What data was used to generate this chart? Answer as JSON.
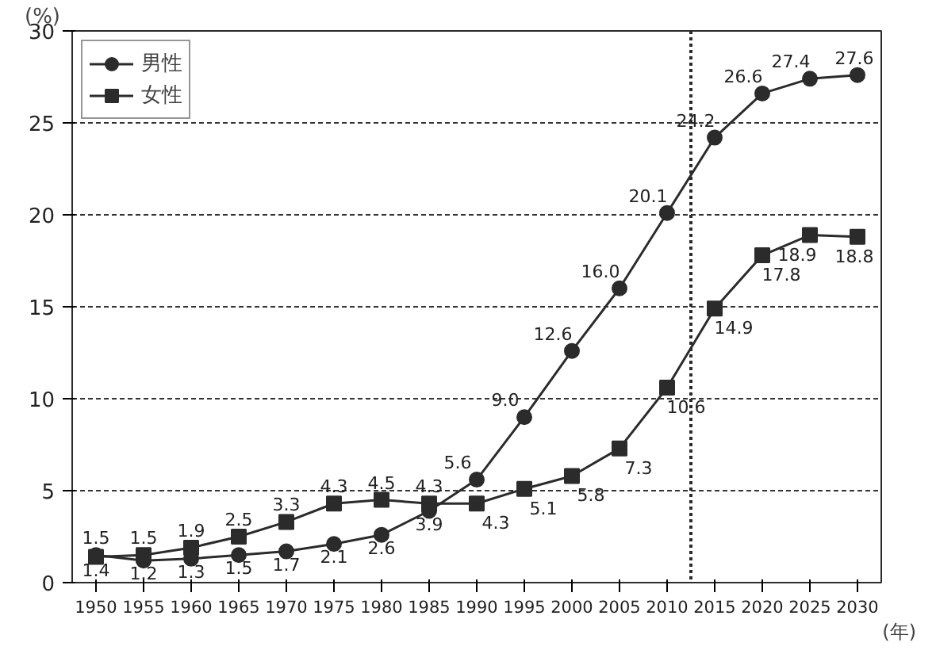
{
  "chart_data": {
    "type": "line",
    "ylabel": "(%)",
    "xlabel": "(年)",
    "x": [
      1950,
      1955,
      1960,
      1965,
      1970,
      1975,
      1980,
      1985,
      1990,
      1995,
      2000,
      2005,
      2010,
      2015,
      2020,
      2025,
      2030
    ],
    "series": [
      {
        "name": "男性",
        "color": "#2b2b2b",
        "marker": "circle",
        "values": [
          1.5,
          1.2,
          1.3,
          1.5,
          1.7,
          2.1,
          2.6,
          3.9,
          5.6,
          9.0,
          12.6,
          16.0,
          20.1,
          24.2,
          26.6,
          27.4,
          27.6
        ],
        "value_labels": [
          "1.5",
          "1.2",
          "1.3",
          "1.5",
          "1.7",
          "2.1",
          "2.6",
          "3.9",
          "5.6",
          "9.0",
          "12.6",
          "16.0",
          "20.1",
          "24.2",
          "26.6",
          "27.4",
          "27.6"
        ]
      },
      {
        "name": "女性",
        "color": "#2b2b2b",
        "marker": "square",
        "values": [
          1.4,
          1.5,
          1.9,
          2.5,
          3.3,
          4.3,
          4.5,
          4.3,
          4.3,
          5.1,
          5.8,
          7.3,
          10.6,
          14.9,
          17.8,
          18.9,
          18.8
        ],
        "value_labels": [
          "1.4",
          "1.5",
          "1.9",
          "2.5",
          "3.3",
          "4.3",
          "4.5",
          "4.3",
          "4.3",
          "5.1",
          "5.8",
          "7.3",
          "10.6",
          "14.9",
          "17.8",
          "18.9",
          "18.8"
        ]
      }
    ],
    "xlim": [
      1947.5,
      2032.5
    ],
    "ylim": [
      0,
      30
    ],
    "xticks": [
      1950,
      1955,
      1960,
      1965,
      1970,
      1975,
      1980,
      1985,
      1990,
      1995,
      2000,
      2005,
      2010,
      2015,
      2020,
      2025,
      2030
    ],
    "yticks": [
      0,
      5,
      10,
      15,
      20,
      25,
      30
    ],
    "ref_lines": [
      {
        "axis": "x",
        "value": 2012.5,
        "line_style": "dotted",
        "color": "#2b2b2b"
      }
    ],
    "grid": "y",
    "legend": "top left"
  }
}
